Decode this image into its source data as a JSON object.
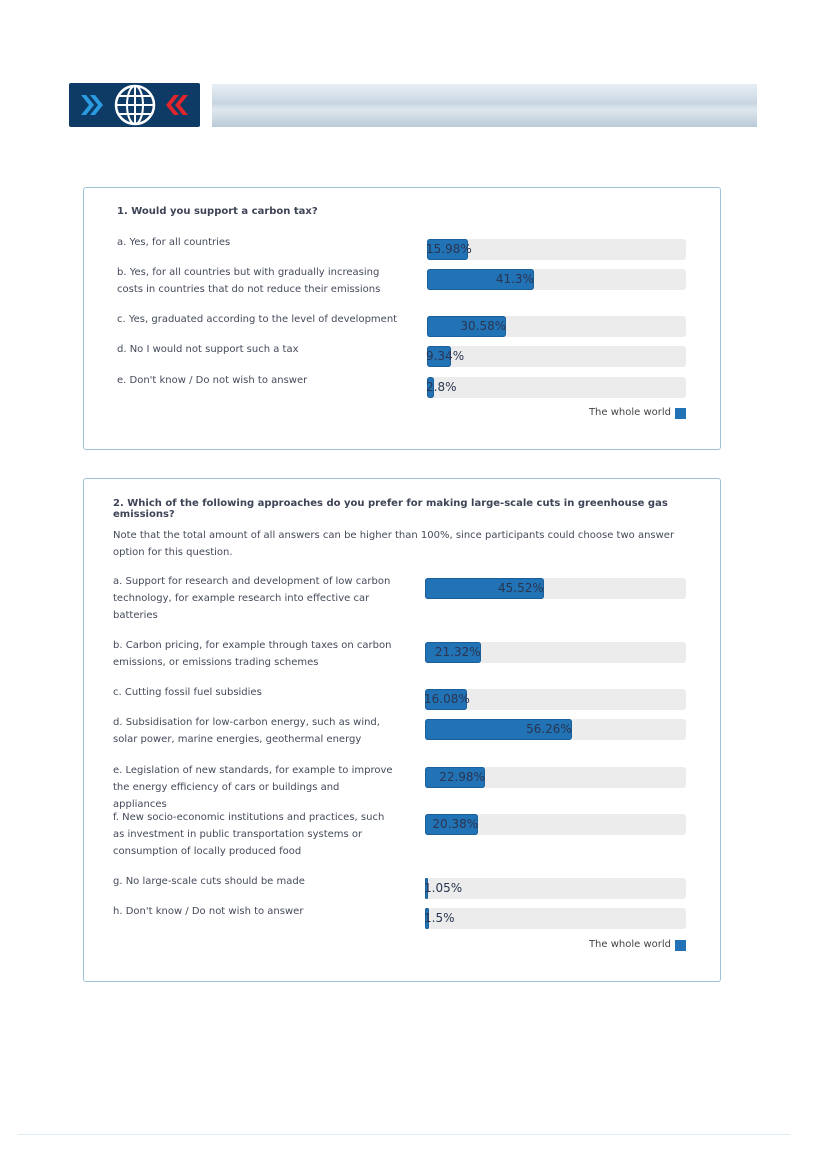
{
  "questions": [
    {
      "title": "1. Would you support a carbon tax?",
      "legend": "The whole world",
      "options": [
        {
          "text": "a. Yes, for all countries",
          "value": 15.98,
          "value_label": "15.98%"
        },
        {
          "text": "b. Yes, for all countries but with gradually increasing costs in countries that do not reduce their emissions",
          "value": 41.3,
          "value_label": "41.3%"
        },
        {
          "text": "c. Yes, graduated according to the level of development",
          "value": 30.58,
          "value_label": "30.58%"
        },
        {
          "text": "d. No I would not support such a tax",
          "value": 9.34,
          "value_label": "9.34%"
        },
        {
          "text": "e. Don't know / Do not wish to answer",
          "value": 2.8,
          "value_label": "2.8%"
        }
      ]
    },
    {
      "title": "2. Which of the following approaches do you prefer for making large-scale cuts in greenhouse gas emissions?",
      "note": "Note that the total amount of all answers can be higher than 100%, since participants could choose two answer option for this question.",
      "legend": "The whole world",
      "options": [
        {
          "text": "a. Support for research and development of low carbon technology, for example research into effective car batteries",
          "value": 45.52,
          "value_label": "45.52%"
        },
        {
          "text": "b. Carbon pricing, for example through taxes on carbon emissions, or emissions trading schemes",
          "value": 21.32,
          "value_label": "21.32%"
        },
        {
          "text": "c. Cutting fossil fuel subsidies",
          "value": 16.08,
          "value_label": "16.08%"
        },
        {
          "text": "d. Subsidisation for low-carbon energy, such as wind, solar power, marine energies, geothermal energy",
          "value": 56.26,
          "value_label": "56.26%"
        },
        {
          "text": "e. Legislation of new standards, for example to improve the energy efficiency of cars or buildings and appliances",
          "value": 22.98,
          "value_label": "22.98%"
        },
        {
          "text": "f. New socio-economic institutions and practices, such as investment in public transportation systems or consumption of locally produced food",
          "value": 20.38,
          "value_label": "20.38%"
        },
        {
          "text": "g. No large-scale cuts should be made",
          "value": 1.05,
          "value_label": "1.05%"
        },
        {
          "text": "h. Don't know / Do not wish to answer",
          "value": 1.5,
          "value_label": "1.5%"
        }
      ]
    }
  ]
}
